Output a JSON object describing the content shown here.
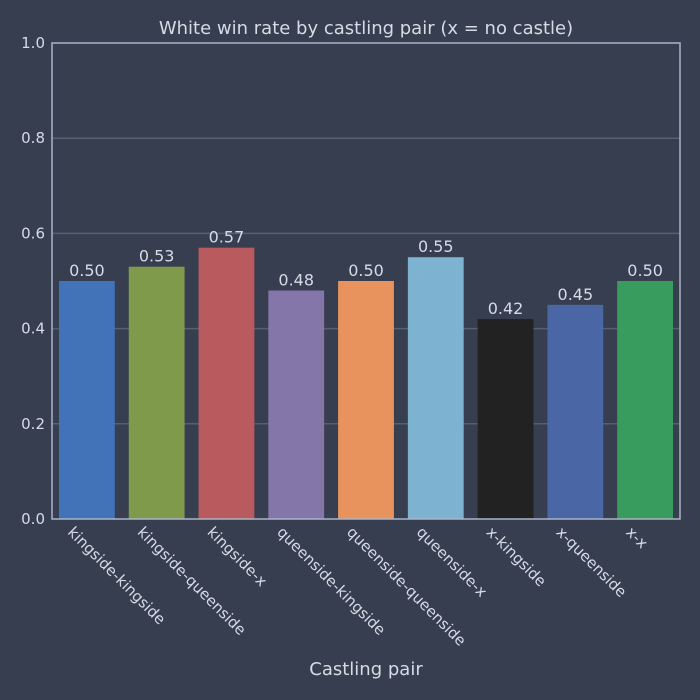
{
  "chart_data": {
    "type": "bar",
    "title": "White win rate by castling pair (x = no castle)",
    "xlabel": "Castling pair",
    "ylabel": "",
    "ylim": [
      0,
      1.0
    ],
    "yticks": [
      "0.0",
      "0.2",
      "0.4",
      "0.6",
      "0.8",
      "1.0"
    ],
    "grid": true,
    "categories": [
      "kingside-kingside",
      "kingside-queenside",
      "kingside-x",
      "queenside-kingside",
      "queenside-queenside",
      "queenside-x",
      "x-kingside",
      "x-queenside",
      "x-x"
    ],
    "values": [
      0.5,
      0.53,
      0.57,
      0.48,
      0.5,
      0.55,
      0.42,
      0.45,
      0.5
    ],
    "value_labels": [
      "0.50",
      "0.53",
      "0.57",
      "0.48",
      "0.50",
      "0.55",
      "0.42",
      "0.45",
      "0.50"
    ],
    "colors": [
      "#4272b8",
      "#7e9a4a",
      "#b85a5e",
      "#8576aa",
      "#e8935e",
      "#7db3d0",
      "#222222",
      "#4b66a4",
      "#399c5f"
    ]
  },
  "theme": {
    "background": "#363e4f",
    "grid_color": "#56606f",
    "axis_color": "#aab4c8",
    "text_color": "#d6dbe6"
  }
}
